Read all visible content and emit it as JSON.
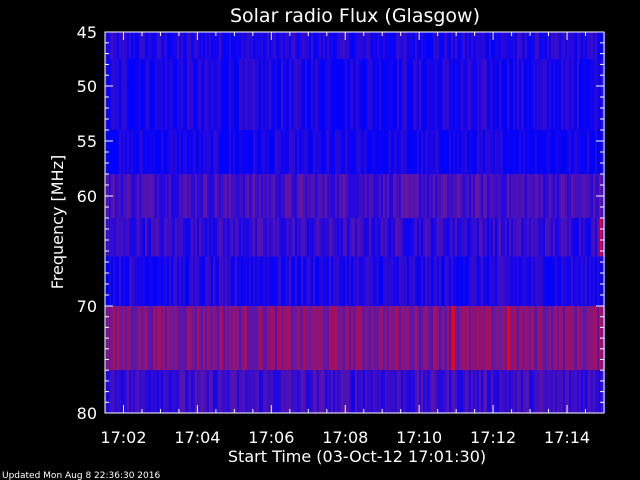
{
  "chart_data": {
    "type": "heatmap",
    "title": "Solar radio Flux (Glasgow)",
    "xlabel": "Start Time (03-Oct-12 17:01:30)",
    "ylabel": "Frequency [MHz]",
    "xlim": [
      "17:01:30",
      "17:15:00"
    ],
    "ylim": [
      45,
      80
    ],
    "y_axis_inverted": true,
    "x_tick_labels": [
      "17:02",
      "17:04",
      "17:06",
      "17:08",
      "17:10",
      "17:12",
      "17:14"
    ],
    "y_tick_labels": [
      45,
      50,
      55,
      60,
      70,
      80
    ],
    "colormap": {
      "low": "#0000ff",
      "mid": "#6a1a9a",
      "high": "#ff0000"
    },
    "bands": [
      {
        "freq_range_mhz": [
          45,
          47.5
        ],
        "level": 0.12
      },
      {
        "freq_range_mhz": [
          47.5,
          54
        ],
        "level": 0.1
      },
      {
        "freq_range_mhz": [
          54,
          58
        ],
        "level": 0.06
      },
      {
        "freq_range_mhz": [
          58,
          62
        ],
        "level": 0.3
      },
      {
        "freq_range_mhz": [
          62,
          65.5
        ],
        "level": 0.22
      },
      {
        "freq_range_mhz": [
          65.5,
          70
        ],
        "level": 0.12
      },
      {
        "freq_range_mhz": [
          70,
          76
        ],
        "level": 0.55
      },
      {
        "freq_range_mhz": [
          76,
          80
        ],
        "level": 0.25
      }
    ],
    "bursts": [
      {
        "time": "17:10:55",
        "freq_range_mhz": [
          70,
          76
        ],
        "level": 1.0
      },
      {
        "time": "17:12:25",
        "freq_range_mhz": [
          70,
          76
        ],
        "level": 1.0
      },
      {
        "time": "17:14:55",
        "freq_range_mhz": [
          62,
          65.5
        ],
        "level": 1.0
      }
    ]
  },
  "footer": {
    "updated": "Updated Mon Aug  8 22:36:30 2016"
  }
}
